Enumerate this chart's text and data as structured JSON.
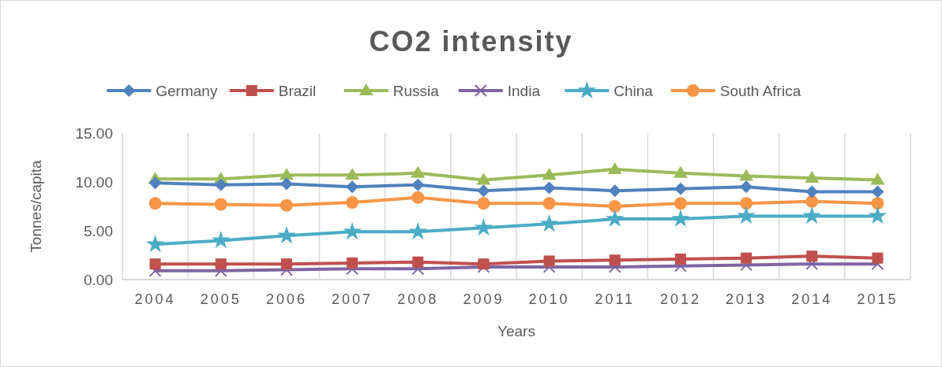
{
  "chart_data": {
    "type": "line",
    "title": "CO2 intensity",
    "xlabel": "Years",
    "ylabel": "Tonnes/capita",
    "categories": [
      "2004",
      "2005",
      "2006",
      "2007",
      "2008",
      "2009",
      "2010",
      "2011",
      "2012",
      "2013",
      "2014",
      "2015"
    ],
    "series": [
      {
        "name": "Germany",
        "color": "#4f81bd",
        "marker": "diamond",
        "values": [
          9.9,
          9.7,
          9.8,
          9.5,
          9.7,
          9.1,
          9.4,
          9.1,
          9.3,
          9.5,
          9.0,
          9.0
        ]
      },
      {
        "name": "Brazil",
        "color": "#c0504d",
        "marker": "square",
        "values": [
          1.6,
          1.6,
          1.6,
          1.7,
          1.8,
          1.6,
          1.9,
          2.0,
          2.1,
          2.2,
          2.4,
          2.2
        ]
      },
      {
        "name": "Russia",
        "color": "#9bbb59",
        "marker": "triangle",
        "values": [
          10.3,
          10.3,
          10.7,
          10.7,
          10.9,
          10.2,
          10.7,
          11.3,
          10.9,
          10.6,
          10.4,
          10.2
        ]
      },
      {
        "name": "India",
        "color": "#8064a2",
        "marker": "cross",
        "values": [
          0.9,
          0.9,
          1.0,
          1.1,
          1.1,
          1.3,
          1.3,
          1.3,
          1.4,
          1.5,
          1.6,
          1.6
        ]
      },
      {
        "name": "China",
        "color": "#4bacc6",
        "marker": "star",
        "values": [
          3.6,
          4.0,
          4.5,
          4.9,
          4.9,
          5.3,
          5.7,
          6.2,
          6.2,
          6.5,
          6.5,
          6.5
        ]
      },
      {
        "name": "South Africa",
        "color": "#f79646",
        "marker": "circle",
        "values": [
          7.8,
          7.7,
          7.6,
          7.9,
          8.4,
          7.8,
          7.8,
          7.5,
          7.8,
          7.8,
          8.0,
          7.8
        ]
      }
    ],
    "ylim": [
      0,
      15
    ],
    "yticks": [
      {
        "value": 0,
        "label": "0.00"
      },
      {
        "value": 5,
        "label": "5.00"
      },
      {
        "value": 10,
        "label": "10.00"
      },
      {
        "value": 15,
        "label": "15.00"
      }
    ],
    "grid": "x",
    "legend": "top",
    "line_style": "solid"
  }
}
